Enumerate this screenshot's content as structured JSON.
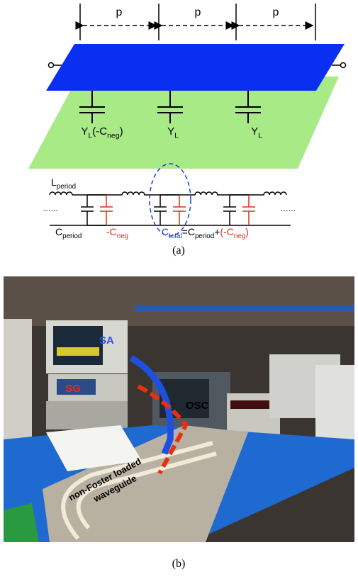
{
  "diagram": {
    "period_labels": [
      "p",
      "p",
      "p"
    ],
    "cell_labels": [
      {
        "segments": [
          {
            "text": "Y"
          },
          {
            "text": "L",
            "sub": true
          },
          {
            "text": "(-C"
          },
          {
            "text": "neg",
            "sub": true
          },
          {
            "text": ")"
          }
        ]
      },
      {
        "segments": [
          {
            "text": "Y"
          },
          {
            "text": "L",
            "sub": true
          }
        ]
      },
      {
        "segments": [
          {
            "text": "Y"
          },
          {
            "text": "L",
            "sub": true
          }
        ]
      }
    ],
    "inductor_label": {
      "segments": [
        {
          "text": "L"
        },
        {
          "text": "period",
          "sub": true
        }
      ]
    },
    "ellipsis_left": "…...",
    "ellipsis_right": "…...",
    "capacitor_label": {
      "segments": [
        {
          "text": "C"
        },
        {
          "text": "period",
          "sub": true
        }
      ]
    },
    "negative_label": {
      "segments": [
        {
          "text": "-C",
          "color": "#d6301c"
        },
        {
          "text": "neg",
          "sub": true,
          "color": "#d6301c"
        }
      ]
    },
    "total_label": {
      "segments": [
        {
          "text": "C",
          "color": "#1a3fd8"
        },
        {
          "text": "total",
          "sub": true,
          "color": "#1a3fd8"
        },
        {
          "text": "=C"
        },
        {
          "text": "period",
          "sub": true
        },
        {
          "text": "+"
        },
        {
          "text": "(-C",
          "color": "#d6301c"
        },
        {
          "text": "neg",
          "sub": true,
          "color": "#d6301c"
        },
        {
          "text": ")",
          "color": "#d6301c"
        }
      ]
    },
    "caption": "(a)"
  },
  "photo": {
    "labels": {
      "sa": "SA",
      "sg": "SG",
      "osc": "OSC",
      "waveguide_1": "non-Foster loaded",
      "waveguide_2": "waveguide"
    },
    "caption": "(b)"
  }
}
